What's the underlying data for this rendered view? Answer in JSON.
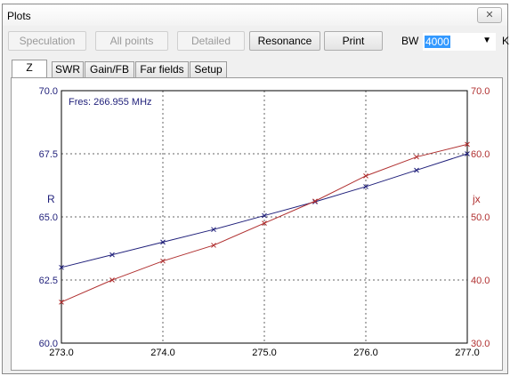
{
  "window": {
    "title": "Plots",
    "close_icon": "close-icon"
  },
  "toolbar": {
    "buttons": [
      {
        "label": "Speculation",
        "enabled": false
      },
      {
        "label": "All points",
        "enabled": false
      },
      {
        "label": "Detailed",
        "enabled": false
      },
      {
        "label": "Resonance",
        "enabled": true
      },
      {
        "label": "Print",
        "enabled": true
      }
    ],
    "bw_label": "BW",
    "bw_value": "4000",
    "bw_unit": "KHz"
  },
  "tabs": [
    {
      "label": "Z",
      "active": true
    },
    {
      "label": "SWR",
      "active": false
    },
    {
      "label": "Gain/FB",
      "active": false
    },
    {
      "label": "Far fields",
      "active": false
    },
    {
      "label": "Setup",
      "active": false
    }
  ],
  "chart_data": {
    "type": "line",
    "annotation": "Fres: 266.955 MHz",
    "x": [
      273.0,
      273.5,
      274.0,
      274.5,
      275.0,
      275.5,
      276.0,
      276.5,
      277.0
    ],
    "x_ticks": [
      "273.0",
      "274.0",
      "275.0",
      "276.0",
      "277.0"
    ],
    "xlim": [
      273.0,
      277.0
    ],
    "left_axis": {
      "label": "R",
      "ticks": [
        "60.0",
        "62.5",
        "65.0",
        "67.5",
        "70.0"
      ],
      "ylim": [
        60.0,
        70.0
      ],
      "color": "#1f1f7a"
    },
    "right_axis": {
      "label": "jx",
      "ticks": [
        "30.0",
        "40.0",
        "50.0",
        "60.0",
        "70.0"
      ],
      "ylim": [
        30.0,
        70.0
      ],
      "color": "#b03030"
    },
    "grid": true,
    "series": [
      {
        "axis": "left",
        "color": "#1f1f7a",
        "values": [
          63.0,
          63.5,
          64.0,
          64.5,
          65.05,
          65.6,
          66.2,
          66.85,
          67.5
        ]
      },
      {
        "axis": "right",
        "color": "#b03030",
        "values": [
          36.5,
          40.0,
          43.0,
          45.5,
          49.0,
          52.5,
          56.5,
          59.5,
          61.5
        ]
      }
    ]
  }
}
